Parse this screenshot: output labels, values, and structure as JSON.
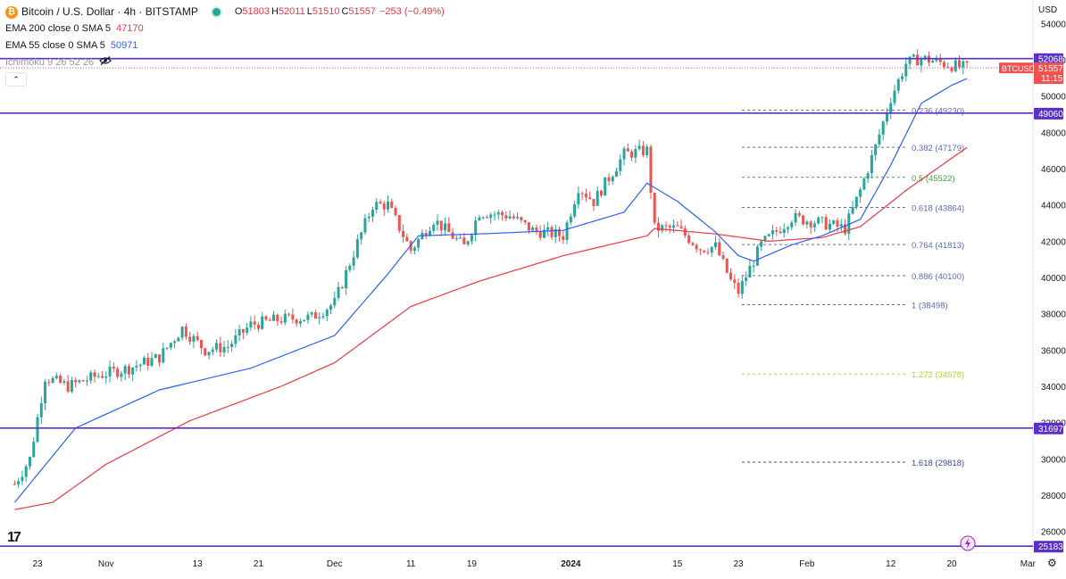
{
  "header": {
    "symbol": "Bitcoin / U.S. Dollar · 4h · BITSTAMP",
    "coin_glyph": "₿",
    "open_label": "O",
    "open": "51803",
    "high_label": "H",
    "high": "52011",
    "low_label": "L",
    "low": "51510",
    "close_label": "C",
    "close": "51557",
    "change": "−253 (−0.49%)"
  },
  "indicators": {
    "ema200_name": "EMA 200 close 0 SMA 5",
    "ema200_value": "47170",
    "ema55_name": "EMA 55 close 0 SMA 5",
    "ema55_value": "50971",
    "ichimoku_name": "Ichimoku 9 26 52 26"
  },
  "currency": "USD",
  "collapse_glyph": "⌃",
  "logo": "17",
  "colors": {
    "up": "#26a69a",
    "down": "#ef5350",
    "ema200": "#f23645",
    "ema55": "#2962ff",
    "hline": "#5b2fc9",
    "fib": "#5b6abf",
    "fib_half": "#43a047",
    "fib_ext": "#c0ca33"
  },
  "chart_data": {
    "type": "candlestick",
    "y_range": [
      24800,
      55300
    ],
    "y_ticks": [
      54000,
      52000,
      50000,
      48000,
      46000,
      44000,
      42000,
      40000,
      38000,
      36000,
      34000,
      32000,
      30000,
      28000,
      26000
    ],
    "x_ticks": [
      "23",
      "Nov",
      "13",
      "21",
      "Dec",
      "11",
      "19",
      "2024",
      "15",
      "23",
      "Feb",
      "12",
      "20",
      "Mar"
    ],
    "horizontal_lines": [
      "52068",
      "49060",
      "31697",
      "25183"
    ],
    "last_price_tag": {
      "symbol": "BTCUSD",
      "price": "51557",
      "countdown": "11:15"
    },
    "fibonacci": [
      {
        "ratio": "0.236",
        "price": "49230"
      },
      {
        "ratio": "0.382",
        "price": "47179"
      },
      {
        "ratio": "0.5",
        "price": "45522"
      },
      {
        "ratio": "0.618",
        "price": "43864"
      },
      {
        "ratio": "0.764",
        "price": "41813"
      },
      {
        "ratio": "0.886",
        "price": "40100"
      },
      {
        "ratio": "1",
        "price": "38498"
      },
      {
        "ratio": "1.272",
        "price": "34678"
      },
      {
        "ratio": "1.618",
        "price": "29818"
      }
    ],
    "price_path": [
      [
        "Oct 20",
        28600
      ],
      [
        "Oct 22",
        30000
      ],
      [
        "Oct 24",
        34500
      ],
      [
        "Oct 27",
        34000
      ],
      [
        "Oct 31",
        34600
      ],
      [
        "Nov 4",
        35000
      ],
      [
        "Nov 8",
        35600
      ],
      [
        "Nov 11",
        37200
      ],
      [
        "Nov 14",
        36000
      ],
      [
        "Nov 17",
        36200
      ],
      [
        "Nov 20",
        37400
      ],
      [
        "Nov 24",
        37700
      ],
      [
        "Nov 28",
        37800
      ],
      [
        "Dec 1",
        38600
      ],
      [
        "Dec 4",
        41900
      ],
      [
        "Dec 6",
        44000
      ],
      [
        "Dec 8",
        44000
      ],
      [
        "Dec 11",
        41500
      ],
      [
        "Dec 14",
        43200
      ],
      [
        "Dec 18",
        41700
      ],
      [
        "Dec 20",
        43600
      ],
      [
        "Dec 24",
        43400
      ],
      [
        "Dec 27",
        42600
      ],
      [
        "Dec 31",
        42300
      ],
      [
        "Jan 2",
        45000
      ],
      [
        "Jan 4",
        44200
      ],
      [
        "Jan 8",
        46800
      ],
      [
        "Jan 11",
        47000
      ],
      [
        "Jan 12",
        42700
      ],
      [
        "Jan 15",
        42700
      ],
      [
        "Jan 18",
        41600
      ],
      [
        "Jan 20",
        41700
      ],
      [
        "Jan 22",
        39800
      ],
      [
        "Jan 23",
        39200
      ],
      [
        "Jan 26",
        41800
      ],
      [
        "Jan 30",
        43300
      ],
      [
        "Feb 3",
        43000
      ],
      [
        "Feb 6",
        42700
      ],
      [
        "Feb 8",
        44800
      ],
      [
        "Feb 10",
        47200
      ],
      [
        "Feb 12",
        49900
      ],
      [
        "Feb 14",
        51800
      ],
      [
        "Feb 16",
        52100
      ],
      [
        "Feb 19",
        51800
      ],
      [
        "Feb 21",
        51600
      ],
      [
        "Feb 22",
        51557
      ]
    ],
    "ema55_path": [
      [
        "Oct 20",
        27600
      ],
      [
        "Oct 28",
        31700
      ],
      [
        "Nov 8",
        33800
      ],
      [
        "Nov 20",
        35000
      ],
      [
        "Dec 1",
        36800
      ],
      [
        "Dec 8",
        40200
      ],
      [
        "Dec 12",
        42300
      ],
      [
        "Dec 20",
        42400
      ],
      [
        "Dec 31",
        42600
      ],
      [
        "Jan 8",
        43600
      ],
      [
        "Jan 11",
        45200
      ],
      [
        "Jan 15",
        44200
      ],
      [
        "Jan 20",
        42500
      ],
      [
        "Jan 23",
        41200
      ],
      [
        "Jan 25",
        40900
      ],
      [
        "Jan 30",
        41800
      ],
      [
        "Feb 3",
        42300
      ],
      [
        "Feb 8",
        43200
      ],
      [
        "Feb 12",
        46200
      ],
      [
        "Feb 16",
        49600
      ],
      [
        "Feb 20",
        50600
      ],
      [
        "Feb 22",
        50971
      ]
    ],
    "ema200_path": [
      [
        "Oct 20",
        27200
      ],
      [
        "Oct 25",
        27600
      ],
      [
        "Nov 1",
        29700
      ],
      [
        "Nov 12",
        32100
      ],
      [
        "Nov 24",
        34000
      ],
      [
        "Dec 1",
        35300
      ],
      [
        "Dec 11",
        38400
      ],
      [
        "Dec 20",
        39800
      ],
      [
        "Dec 31",
        41200
      ],
      [
        "Jan 11",
        42300
      ],
      [
        "Jan 12",
        42700
      ],
      [
        "Jan 20",
        42400
      ],
      [
        "Jan 27",
        42000
      ],
      [
        "Feb 3",
        42200
      ],
      [
        "Feb 8",
        42800
      ],
      [
        "Feb 14",
        44800
      ],
      [
        "Feb 22",
        47170
      ]
    ]
  }
}
